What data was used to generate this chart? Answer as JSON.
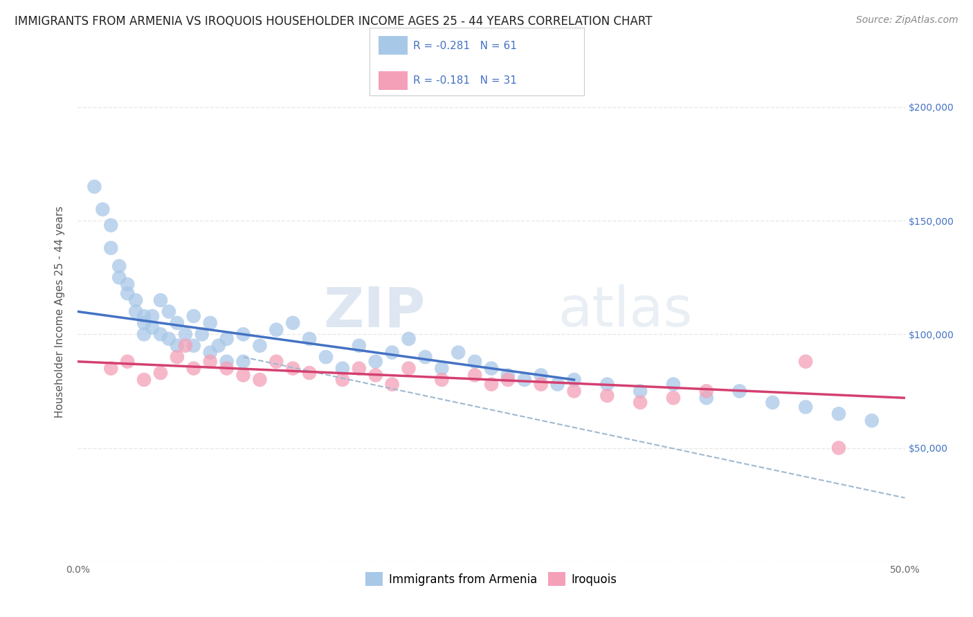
{
  "title": "IMMIGRANTS FROM ARMENIA VS IROQUOIS HOUSEHOLDER INCOME AGES 25 - 44 YEARS CORRELATION CHART",
  "source": "Source: ZipAtlas.com",
  "ylabel": "Householder Income Ages 25 - 44 years",
  "xlim": [
    0,
    50
  ],
  "ylim": [
    0,
    220000
  ],
  "yticks": [
    0,
    50000,
    100000,
    150000,
    200000
  ],
  "ytick_labels_right": [
    "",
    "$50,000",
    "$100,000",
    "$150,000",
    "$200,000"
  ],
  "xticks": [
    0,
    10,
    20,
    30,
    40,
    50
  ],
  "xtick_labels": [
    "0.0%",
    "",
    "",
    "",
    "",
    "50.0%"
  ],
  "legend_label1": "R = -0.281   N = 61",
  "legend_label2": "R = -0.181   N = 31",
  "legend_label_armenia": "Immigrants from Armenia",
  "legend_label_iroquois": "Iroquois",
  "color_blue": "#a8c8e8",
  "color_blue_line": "#4472c4",
  "color_pink": "#f4a0b8",
  "color_pink_line": "#d44070",
  "color_dashed": "#a0b8d0",
  "color_legend_text": "#4472c4",
  "watermark_zip": "ZIP",
  "watermark_atlas": "atlas",
  "blue_scatter_x": [
    1.0,
    1.5,
    2.0,
    2.0,
    2.5,
    2.5,
    3.0,
    3.0,
    3.5,
    3.5,
    4.0,
    4.0,
    4.0,
    4.5,
    4.5,
    5.0,
    5.0,
    5.5,
    5.5,
    6.0,
    6.0,
    6.5,
    7.0,
    7.0,
    7.5,
    8.0,
    8.0,
    8.5,
    9.0,
    9.0,
    10.0,
    10.0,
    11.0,
    12.0,
    13.0,
    14.0,
    15.0,
    16.0,
    17.0,
    18.0,
    19.0,
    20.0,
    21.0,
    22.0,
    23.0,
    24.0,
    25.0,
    26.0,
    27.0,
    28.0,
    29.0,
    30.0,
    32.0,
    34.0,
    36.0,
    38.0,
    40.0,
    42.0,
    44.0,
    46.0,
    48.0
  ],
  "blue_scatter_y": [
    165000,
    155000,
    148000,
    138000,
    130000,
    125000,
    122000,
    118000,
    115000,
    110000,
    108000,
    105000,
    100000,
    108000,
    103000,
    115000,
    100000,
    110000,
    98000,
    105000,
    95000,
    100000,
    108000,
    95000,
    100000,
    105000,
    92000,
    95000,
    98000,
    88000,
    100000,
    88000,
    95000,
    102000,
    105000,
    98000,
    90000,
    85000,
    95000,
    88000,
    92000,
    98000,
    90000,
    85000,
    92000,
    88000,
    85000,
    82000,
    80000,
    82000,
    78000,
    80000,
    78000,
    75000,
    78000,
    72000,
    75000,
    70000,
    68000,
    65000,
    62000
  ],
  "pink_scatter_x": [
    2.0,
    3.0,
    4.0,
    5.0,
    6.0,
    6.5,
    7.0,
    8.0,
    9.0,
    10.0,
    11.0,
    12.0,
    13.0,
    14.0,
    16.0,
    17.0,
    18.0,
    19.0,
    20.0,
    22.0,
    24.0,
    25.0,
    26.0,
    28.0,
    30.0,
    32.0,
    34.0,
    36.0,
    38.0,
    44.0,
    46.0
  ],
  "pink_scatter_y": [
    85000,
    88000,
    80000,
    83000,
    90000,
    95000,
    85000,
    88000,
    85000,
    82000,
    80000,
    88000,
    85000,
    83000,
    80000,
    85000,
    82000,
    78000,
    85000,
    80000,
    82000,
    78000,
    80000,
    78000,
    75000,
    73000,
    70000,
    72000,
    75000,
    88000,
    50000
  ],
  "blue_line_x": [
    0,
    30
  ],
  "blue_line_y": [
    110000,
    80000
  ],
  "pink_line_x": [
    0,
    50
  ],
  "pink_line_y": [
    88000,
    72000
  ],
  "dashed_line_x": [
    10,
    50
  ],
  "dashed_line_y": [
    90000,
    28000
  ],
  "background_color": "#ffffff",
  "grid_color": "#e8e8e8",
  "grid_style": "--",
  "title_fontsize": 12,
  "axis_label_fontsize": 11,
  "tick_fontsize": 10,
  "legend_fontsize": 12,
  "source_fontsize": 10
}
